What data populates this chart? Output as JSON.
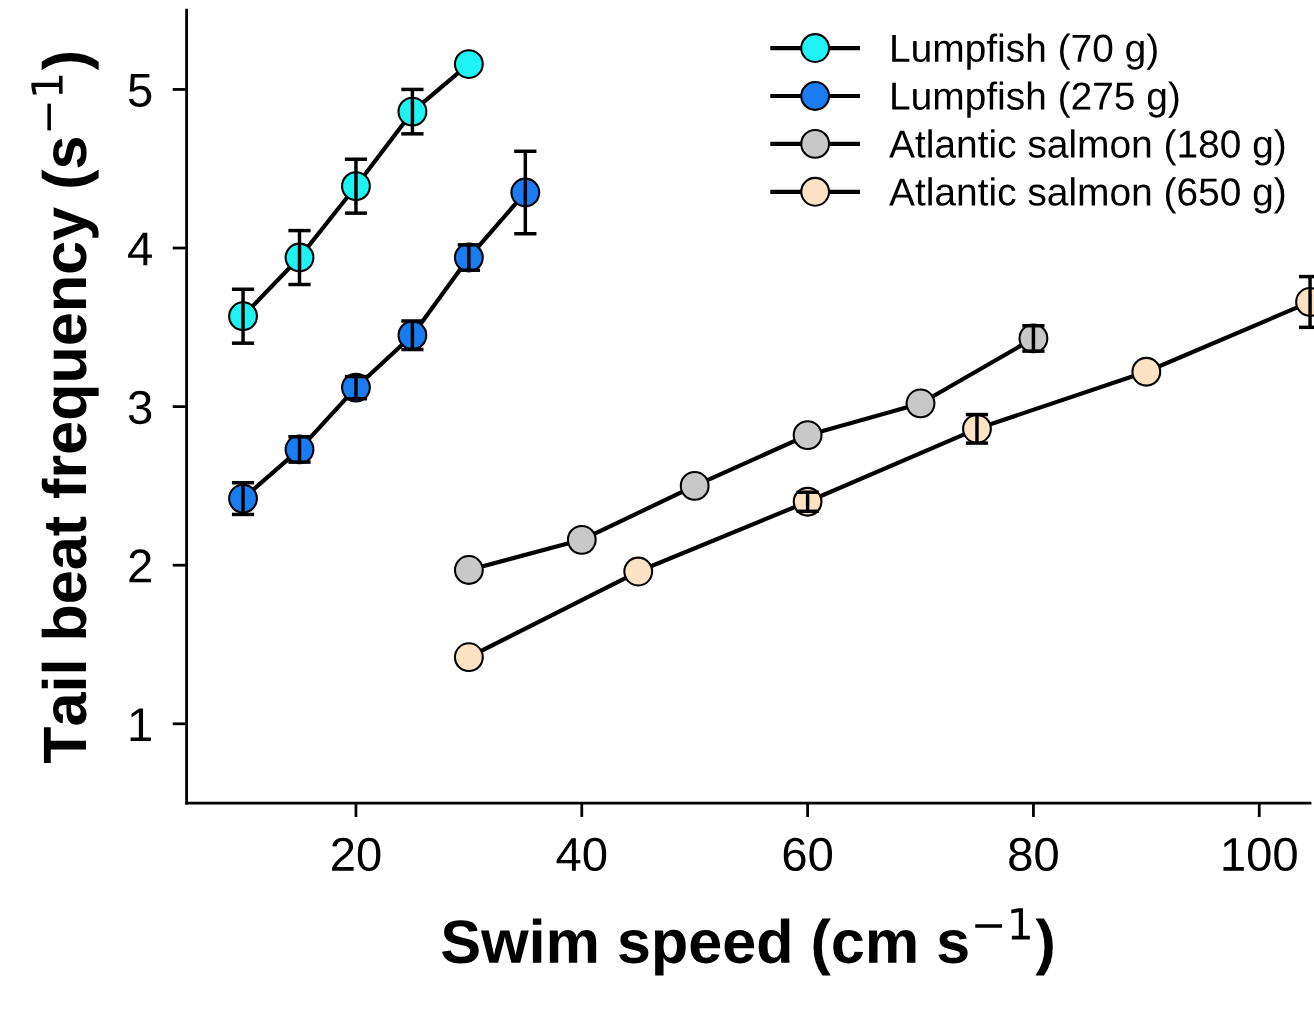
{
  "chart_data": {
    "type": "line",
    "xlabel": "Swim speed (cm s$^{−1}$)",
    "ylabel": "Tail beat frequency (s$^{−1}$)",
    "xlim": [
      5,
      104.5
    ],
    "ylim": [
      0.5,
      5.5
    ],
    "xticks": [
      20,
      40,
      60,
      80,
      100
    ],
    "yticks": [
      1,
      2,
      3,
      4,
      5
    ],
    "grid": false,
    "legend": "top right",
    "marker": "circle",
    "line_style": "solid",
    "series": [
      {
        "name": "Lumpfish (70 g)",
        "color": "#1ff4f4",
        "x": [
          10,
          15,
          20,
          25,
          30
        ],
        "values": [
          3.57,
          3.94,
          4.39,
          4.86,
          5.16
        ],
        "errors": [
          0.17,
          0.17,
          0.17,
          0.14,
          null
        ]
      },
      {
        "name": "Lumpfish (275 g)",
        "color": "#1a7cf0",
        "x": [
          10,
          15,
          20,
          25,
          30,
          35
        ],
        "values": [
          2.42,
          2.73,
          3.12,
          3.45,
          3.94,
          4.35
        ],
        "errors": [
          0.1,
          0.08,
          0.07,
          0.09,
          0.08,
          0.26
        ]
      },
      {
        "name": "Atlantic salmon (180 g)",
        "color": "#c8c8c8",
        "x": [
          30,
          40,
          50,
          60,
          70,
          80
        ],
        "values": [
          1.97,
          2.16,
          2.5,
          2.82,
          3.02,
          3.43
        ],
        "errors": [
          null,
          null,
          null,
          null,
          null,
          0.08
        ]
      },
      {
        "name": "Atlantic salmon (650 g)",
        "color": "#fde3c4",
        "x": [
          30,
          45,
          60,
          75,
          90,
          104.5
        ],
        "values": [
          1.42,
          1.96,
          2.4,
          2.86,
          3.22,
          3.66
        ],
        "errors": [
          null,
          null,
          0.06,
          0.09,
          null,
          0.16
        ]
      }
    ]
  }
}
